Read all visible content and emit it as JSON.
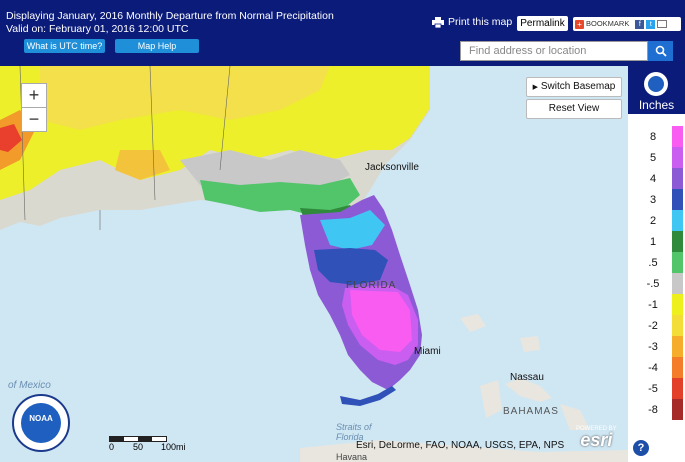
{
  "header": {
    "title": "Displaying January, 2016 Monthly Departure from Normal Precipitation",
    "valid_on": "Valid on: February 01, 2016 12:00 UTC",
    "utc_button": "What is UTC time?",
    "map_help_button": "Map Help",
    "print_label": "Print this map",
    "permalink_label": "Permalink",
    "bookmark_label": "BOOKMARK"
  },
  "search": {
    "placeholder": "Find address or location"
  },
  "map_controls": {
    "zoom_in": "+",
    "zoom_out": "−",
    "switch_basemap": "Switch Basemap",
    "reset_view": "Reset View"
  },
  "map_labels": {
    "jacksonville": "Jacksonville",
    "florida": "FLORIDA",
    "miami": "Miami",
    "nassau": "Nassau",
    "bahamas": "BAHAMAS",
    "gulf": "of Mexico",
    "straits": "Straits of Florida",
    "havana": "Havana"
  },
  "scale_bar": {
    "ticks": [
      "0",
      "50",
      "100mi"
    ]
  },
  "attribution": "Esri, DeLorme, FAO, NOAA, USGS, EPA, NPS",
  "esri_logo": {
    "powered_by": "POWERED BY",
    "name": "esri"
  },
  "noaa_logo": {
    "text": "NOAA"
  },
  "legend": {
    "unit": "Inches",
    "items": [
      {
        "label": "8",
        "color": "#f85cf0"
      },
      {
        "label": "5",
        "color": "#c95ef0"
      },
      {
        "label": "4",
        "color": "#8d5ad6"
      },
      {
        "label": "3",
        "color": "#2f51b8"
      },
      {
        "label": "2",
        "color": "#3fc6f2"
      },
      {
        "label": "1",
        "color": "#2f8a3c"
      },
      {
        "label": ".5",
        "color": "#52c56a"
      },
      {
        "label": "-.5",
        "color": "#c8c8c8"
      },
      {
        "label": "-1",
        "color": "#eef01e"
      },
      {
        "label": "-2",
        "color": "#f3de38"
      },
      {
        "label": "-3",
        "color": "#f5ad2b"
      },
      {
        "label": "-4",
        "color": "#f47d2a"
      },
      {
        "label": "-5",
        "color": "#e3402a"
      },
      {
        "label": "-8",
        "color": "#a52a28"
      }
    ],
    "help": "?"
  }
}
